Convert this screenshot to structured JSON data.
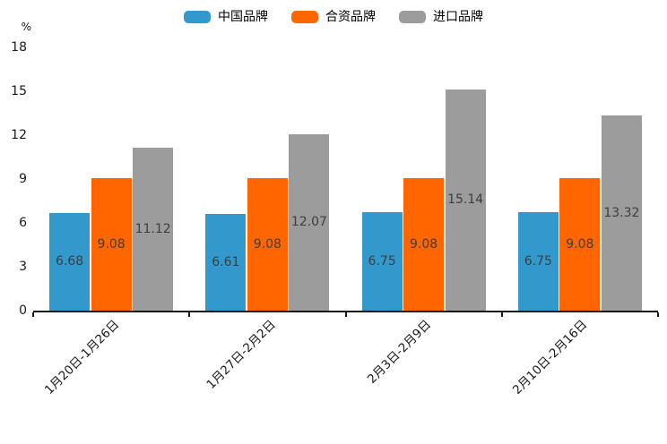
{
  "chart_data": {
    "type": "bar",
    "title": "",
    "unit_label": "%",
    "categories": [
      "1月20日-1月26日",
      "1月27日-2月2日",
      "2月3日-2月9日",
      "2月10日-2月16日"
    ],
    "series": [
      {
        "name": "中国品牌",
        "color": "#3399cc",
        "values": [
          6.68,
          6.61,
          6.75,
          6.75
        ]
      },
      {
        "name": "合资品牌",
        "color": "#ff6600",
        "values": [
          9.08,
          9.08,
          9.08,
          9.08
        ]
      },
      {
        "name": "进口品牌",
        "color": "#9c9c9c",
        "values": [
          11.12,
          12.07,
          15.14,
          13.32
        ]
      }
    ],
    "yticks": [
      0,
      3,
      6,
      9,
      12,
      15,
      18
    ],
    "ylim": [
      0,
      18
    ],
    "legend_position": "top",
    "grid": false,
    "value_labels": true,
    "axis_color": "#1a1a1a",
    "value_label_color": "#3d3d3d"
  }
}
